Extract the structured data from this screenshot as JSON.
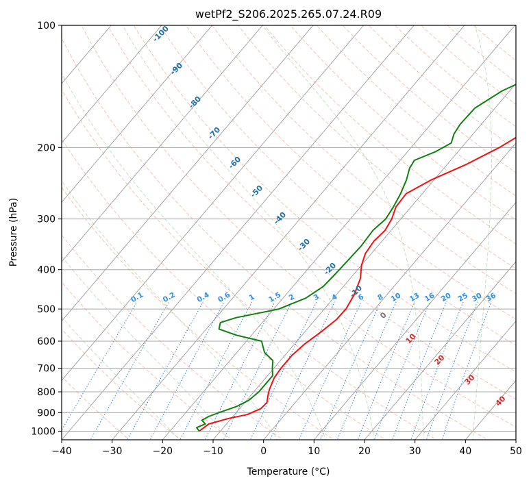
{
  "chart_data": {
    "type": "line",
    "chart_kind": "skew-T log-P thermodynamic diagram",
    "title": "wetPf2_S206.2025.265.07.24.R09",
    "xlabel": "Temperature (°C)",
    "ylabel": "Pressure (hPa)",
    "xlim": [
      -40,
      50
    ],
    "ylim": [
      1050,
      100
    ],
    "x_ticks": [
      -40,
      -30,
      -20,
      -10,
      0,
      10,
      20,
      30,
      40,
      50
    ],
    "x_tick_labels": [
      "−40",
      "−30",
      "−20",
      "−10",
      "0",
      "10",
      "20",
      "30",
      "40",
      "50"
    ],
    "y_ticks": [
      100,
      200,
      300,
      400,
      500,
      600,
      700,
      800,
      900,
      1000
    ],
    "y_tick_labels": [
      "100",
      "200",
      "300",
      "400",
      "500",
      "600",
      "700",
      "800",
      "900",
      "1000"
    ],
    "grid": true,
    "isotherm_labels": [
      {
        "value": -100,
        "text": "-100"
      },
      {
        "value": -90,
        "text": "-90"
      },
      {
        "value": -80,
        "text": "-80"
      },
      {
        "value": -70,
        "text": "-70"
      },
      {
        "value": -60,
        "text": "-60"
      },
      {
        "value": -50,
        "text": "-50"
      },
      {
        "value": -40,
        "text": "-40"
      },
      {
        "value": -30,
        "text": "-30"
      },
      {
        "value": -20,
        "text": "-20"
      },
      {
        "value": -10,
        "text": "-10"
      },
      {
        "value": 0,
        "text": "0"
      },
      {
        "value": 10,
        "text": "10"
      },
      {
        "value": 20,
        "text": "20"
      },
      {
        "value": 30,
        "text": "30"
      },
      {
        "value": 40,
        "text": "40"
      }
    ],
    "mixing_ratio_labels": [
      "0.1",
      "0.2",
      "0.4",
      "0.6",
      "1",
      "1.5",
      "2",
      "3",
      "4",
      "6",
      "8",
      "10",
      "13",
      "16",
      "20",
      "25",
      "30",
      "36"
    ],
    "mixing_ratio_values": [
      0.1,
      0.2,
      0.4,
      0.6,
      1,
      1.5,
      2,
      3,
      4,
      6,
      8,
      10,
      13,
      16,
      20,
      25,
      30,
      36
    ],
    "series": [
      {
        "name": "Temperature",
        "color": "#ee1111",
        "points": [
          [
            1000,
            -14.2
          ],
          [
            960,
            -13.5
          ],
          [
            930,
            -10.5
          ],
          [
            910,
            -7.5
          ],
          [
            880,
            -5.8
          ],
          [
            850,
            -5.6
          ],
          [
            820,
            -6.5
          ],
          [
            790,
            -7.3
          ],
          [
            740,
            -8.3
          ],
          [
            700,
            -8.6
          ],
          [
            650,
            -8.6
          ],
          [
            610,
            -8.0
          ],
          [
            570,
            -6.8
          ],
          [
            530,
            -5.8
          ],
          [
            500,
            -5.7
          ],
          [
            460,
            -6.5
          ],
          [
            420,
            -8.0
          ],
          [
            390,
            -10.0
          ],
          [
            365,
            -11.2
          ],
          [
            340,
            -11.6
          ],
          [
            320,
            -11.2
          ],
          [
            300,
            -11.8
          ],
          [
            280,
            -13.0
          ],
          [
            260,
            -13.2
          ],
          [
            240,
            -10.5
          ],
          [
            220,
            -6.2
          ],
          [
            200,
            -2.5
          ],
          [
            180,
            0.5
          ],
          [
            160,
            3.5
          ],
          [
            140,
            6.5
          ],
          [
            120,
            9.5
          ],
          [
            110,
            10.8
          ],
          [
            100,
            12.4
          ]
        ]
      },
      {
        "name": "Dewpoint",
        "color": "#108010",
        "points": [
          [
            1000,
            -14.2
          ],
          [
            980,
            -15.3
          ],
          [
            960,
            -14.2
          ],
          [
            940,
            -15.5
          ],
          [
            920,
            -14.8
          ],
          [
            900,
            -13.4
          ],
          [
            870,
            -11.0
          ],
          [
            840,
            -9.6
          ],
          [
            800,
            -9.0
          ],
          [
            760,
            -9.0
          ],
          [
            730,
            -9.0
          ],
          [
            700,
            -10.3
          ],
          [
            670,
            -11.5
          ],
          [
            640,
            -14.5
          ],
          [
            600,
            -17.0
          ],
          [
            580,
            -23.0
          ],
          [
            560,
            -27.5
          ],
          [
            540,
            -28.3
          ],
          [
            525,
            -26.0
          ],
          [
            500,
            -19.0
          ],
          [
            470,
            -15.5
          ],
          [
            440,
            -14.0
          ],
          [
            410,
            -13.7
          ],
          [
            380,
            -13.5
          ],
          [
            350,
            -13.3
          ],
          [
            320,
            -13.6
          ],
          [
            300,
            -13.0
          ],
          [
            280,
            -13.5
          ],
          [
            260,
            -14.3
          ],
          [
            240,
            -15.5
          ],
          [
            225,
            -16.8
          ],
          [
            215,
            -17.2
          ],
          [
            205,
            -14.5
          ],
          [
            195,
            -12.8
          ],
          [
            185,
            -13.8
          ],
          [
            175,
            -14.2
          ],
          [
            160,
            -14.0
          ],
          [
            145,
            -11.5
          ],
          [
            130,
            -6.5
          ],
          [
            118,
            -1.0
          ],
          [
            110,
            2.3
          ],
          [
            104,
            4.0
          ],
          [
            100,
            5.0
          ]
        ]
      }
    ]
  }
}
